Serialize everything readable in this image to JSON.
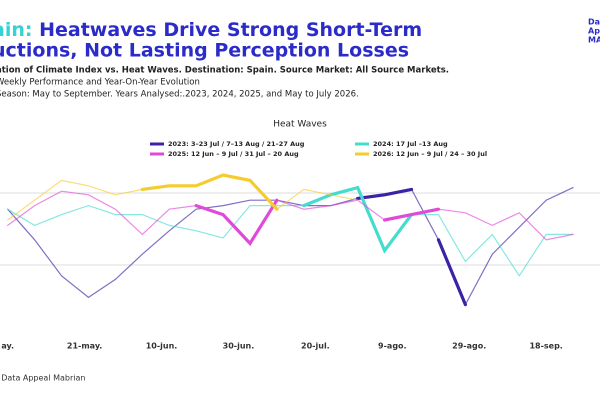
{
  "header": {
    "title_accent": "ain:",
    "title_line1": " Heatwaves Drive Strong Short-Term",
    "title_line2": "uctions, Not Lasting Perception Losses",
    "subtitle1": "ation of Climate Index vs. Heat Waves. Destination: Spain. Source Market: All Source Markets.",
    "subtitle2": "Weekly Performance and Year-On-Year Evolution",
    "subtitle3": "Season: May to September. Years Analysed:.2023, 2024, 2025, and May to July 2026.",
    "logo1": "Da",
    "logo2": "Ap",
    "logo3": "MA"
  },
  "footer": {
    "source": ": Data Appeal Mabrian"
  },
  "chart_data": {
    "type": "line",
    "legend_title": "Heat Waves",
    "grid": true,
    "x": [
      0,
      7,
      14,
      21,
      28,
      35,
      42,
      49,
      56,
      63,
      70,
      77,
      84,
      91,
      98,
      105,
      112,
      119,
      126,
      133,
      140,
      147
    ],
    "xlim": [
      -2,
      154
    ],
    "xticks": [
      {
        "value": 0,
        "label": "ay."
      },
      {
        "value": 20,
        "label": "21-may."
      },
      {
        "value": 40,
        "label": "10-jun."
      },
      {
        "value": 60,
        "label": "30-jun."
      },
      {
        "value": 80,
        "label": "20-jul."
      },
      {
        "value": 100,
        "label": "9-ago."
      },
      {
        "value": 120,
        "label": "29-ago."
      },
      {
        "value": 140,
        "label": "18-sep."
      }
    ],
    "ylim": [
      0,
      100
    ],
    "yticks": [
      40,
      80
    ],
    "series": [
      {
        "name": "2023: 3–23 Jul / 7–13 Aug / 21–27 Aug",
        "color": "#3b22a6",
        "highlight": [
          [
            13,
            15
          ],
          [
            16,
            17
          ]
        ],
        "values": [
          71,
          54,
          34,
          22,
          32,
          46,
          59,
          71,
          73,
          76,
          76,
          73,
          73,
          77,
          79,
          82,
          54,
          18,
          46,
          61,
          76,
          83
        ]
      },
      {
        "name": "2024: 17 Jul –13 Aug",
        "color": "#45dccf",
        "highlight": [
          [
            11,
            15
          ]
        ],
        "values": [
          71,
          62,
          68,
          73,
          68,
          68,
          62,
          59,
          55,
          73,
          73,
          73,
          79,
          83,
          48,
          68,
          68,
          42,
          57,
          34,
          57,
          57
        ]
      },
      {
        "name": "2025: 12 Jun – 9 Jul / 31 Jul – 20 Aug",
        "color": "#e04ad8",
        "highlight": [
          [
            7,
            10
          ],
          [
            14,
            16
          ]
        ],
        "values": [
          62,
          73,
          81,
          79,
          71,
          57,
          71,
          73,
          68,
          52,
          76,
          71,
          73,
          76,
          65,
          68,
          71,
          69,
          62,
          69,
          54,
          57
        ]
      },
      {
        "name": "2026: 12 Jun – 9 Jul / 24 – 30 Jul",
        "color": "#f5cc2e",
        "highlight": [
          [
            5,
            10
          ]
        ],
        "values": [
          65,
          76,
          87,
          84,
          79,
          82,
          84,
          84,
          90,
          87,
          71,
          82,
          79,
          76,
          null,
          null,
          null,
          null,
          null,
          null,
          null,
          null
        ]
      }
    ]
  }
}
